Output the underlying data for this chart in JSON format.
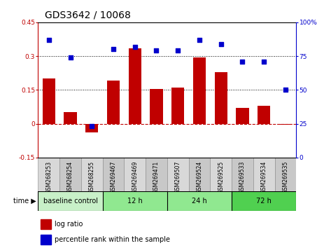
{
  "title": "GDS3642 / 10068",
  "samples": [
    "GSM268253",
    "GSM268254",
    "GSM268255",
    "GSM269467",
    "GSM269469",
    "GSM269471",
    "GSM269507",
    "GSM269524",
    "GSM269525",
    "GSM269533",
    "GSM269534",
    "GSM269535"
  ],
  "log_ratio": [
    0.2,
    0.05,
    -0.04,
    0.19,
    0.335,
    0.155,
    0.16,
    0.295,
    0.23,
    0.07,
    0.08,
    -0.005
  ],
  "percentile_rank": [
    87,
    74,
    23,
    80,
    82,
    79,
    79,
    87,
    84,
    71,
    71,
    50
  ],
  "bar_color": "#c00000",
  "dot_color": "#0000cc",
  "left_ylim": [
    -0.15,
    0.45
  ],
  "right_ylim": [
    0,
    100
  ],
  "left_yticks": [
    -0.15,
    0.0,
    0.15,
    0.3,
    0.45
  ],
  "right_yticks": [
    0,
    25,
    50,
    75,
    100
  ],
  "left_yticklabels": [
    "-0.15",
    "0",
    "0.15",
    "0.3",
    "0.45"
  ],
  "right_yticklabels": [
    "0",
    "25",
    "50",
    "75",
    "100%"
  ],
  "hlines": [
    0.15,
    0.3
  ],
  "zero_line_color": "#c00000",
  "hline_color": "#000000",
  "groups": [
    {
      "label": "baseline control",
      "start": 0,
      "end": 3,
      "color": "#c8f0c8"
    },
    {
      "label": "12 h",
      "start": 3,
      "end": 6,
      "color": "#90e890"
    },
    {
      "label": "24 h",
      "start": 6,
      "end": 9,
      "color": "#90e890"
    },
    {
      "label": "72 h",
      "start": 9,
      "end": 12,
      "color": "#50d050"
    }
  ],
  "sample_col_colors": [
    "#d8d8d8",
    "#c8c8c8"
  ],
  "legend_items": [
    {
      "label": "log ratio",
      "color": "#c00000"
    },
    {
      "label": "percentile rank within the sample",
      "color": "#0000cc"
    }
  ],
  "title_fontsize": 10,
  "tick_fontsize": 6.5
}
